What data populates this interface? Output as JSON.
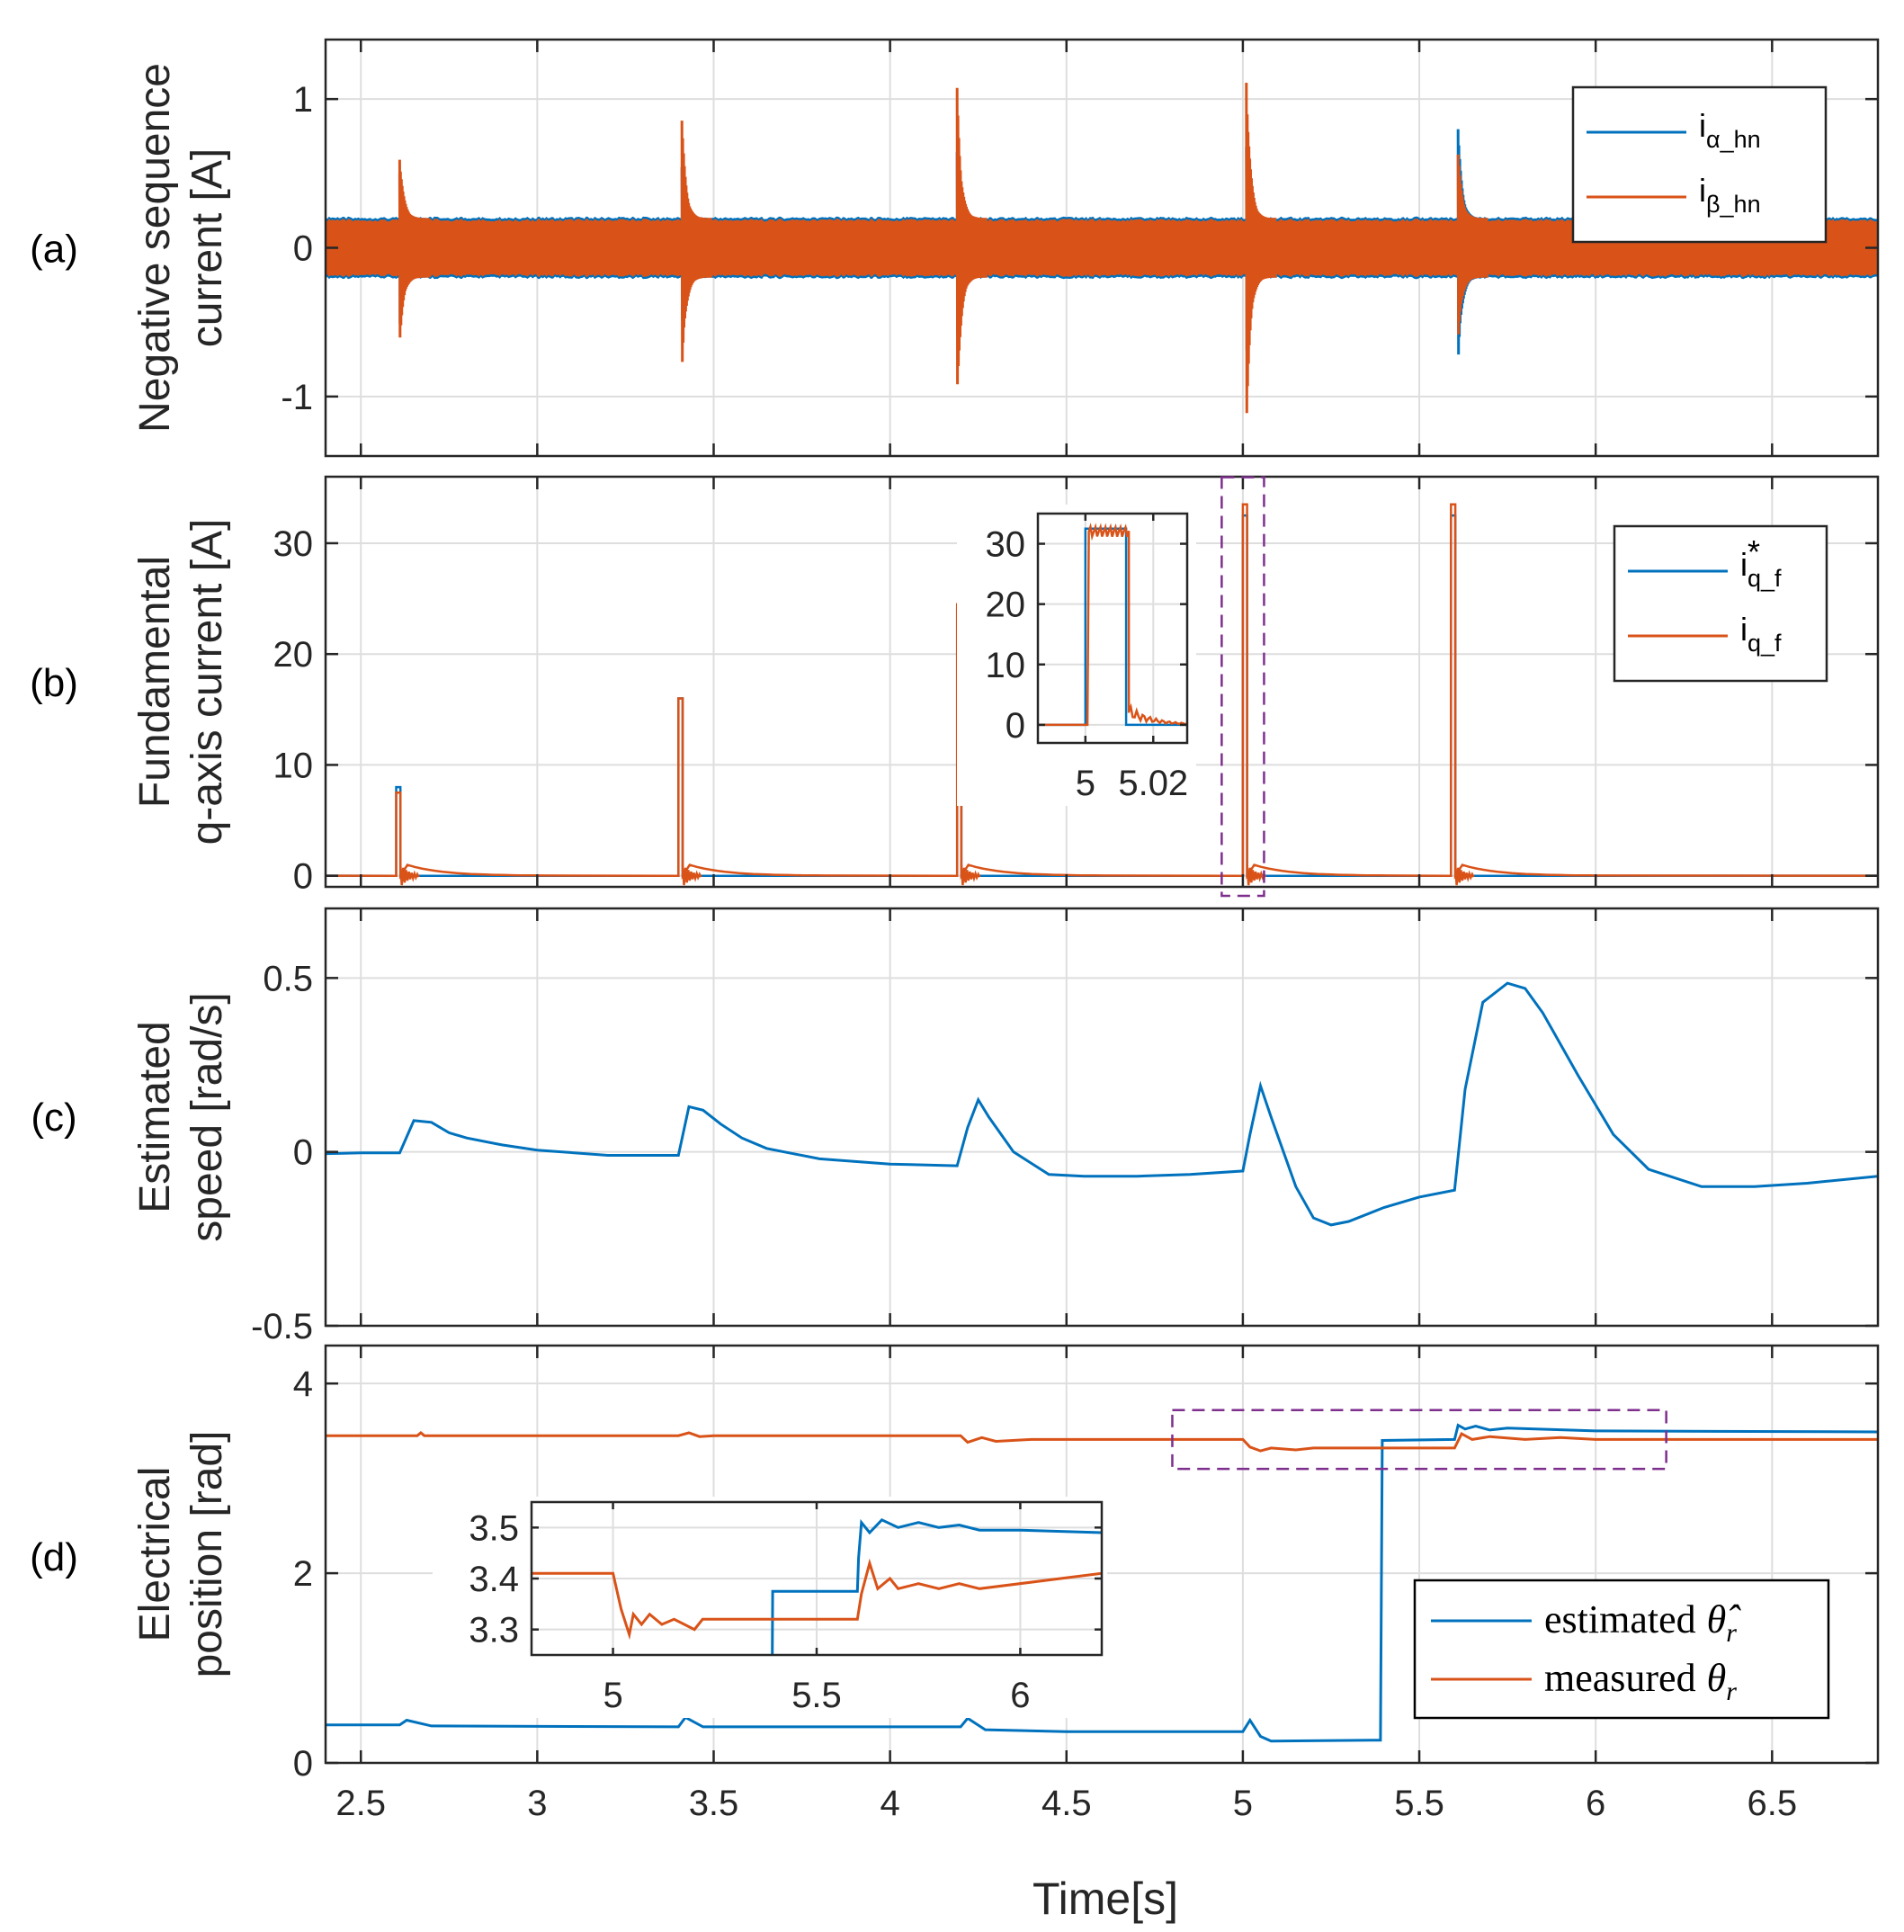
{
  "colors": {
    "blue": "#0072BD",
    "orange": "#D95319",
    "purple": "#7E2F8E",
    "grid": "#dedede",
    "axis": "#262626"
  },
  "chart_data": [
    {
      "id": "a",
      "type": "line",
      "panel_label": "(a)",
      "ylabel": [
        "Negative sequence",
        "current [A]"
      ],
      "xlim": [
        2.4,
        6.8
      ],
      "ylim": [
        -1.4,
        1.4
      ],
      "xticks": [
        2.5,
        3,
        3.5,
        4,
        4.5,
        5,
        5.5,
        6,
        6.5
      ],
      "yticks": [
        -1,
        0,
        1
      ],
      "ytick_labels": [
        "-1",
        "0",
        "1"
      ],
      "baseline_amplitude": 0.2,
      "series": [
        {
          "name": "i_alpha_hn",
          "legend_main": "i",
          "legend_sub": "α_hn",
          "color": "blue",
          "transients": [
            {
              "t": 2.61,
              "peak": 0.55
            },
            {
              "t": 3.41,
              "peak": 0.55
            },
            {
              "t": 4.19,
              "peak": 0.65
            },
            {
              "t": 5.01,
              "peak": 0.75
            },
            {
              "t": 5.61,
              "peak": 0.82
            }
          ]
        },
        {
          "name": "i_beta_hn",
          "legend_main": "i",
          "legend_sub": "β_hn",
          "color": "orange",
          "transients": [
            {
              "t": 2.61,
              "peak": 0.65
            },
            {
              "t": 3.41,
              "peak": 0.88
            },
            {
              "t": 4.19,
              "peak": 1.08
            },
            {
              "t": 5.01,
              "peak": 1.22
            },
            {
              "t": 5.61,
              "peak": 0.65
            }
          ]
        }
      ]
    },
    {
      "id": "b",
      "type": "line",
      "panel_label": "(b)",
      "ylabel": [
        "Fundamental",
        "q-axis current [A]"
      ],
      "xlim": [
        2.4,
        6.8
      ],
      "ylim": [
        -1,
        36
      ],
      "xticks": [
        2.5,
        3,
        3.5,
        4,
        4.5,
        5,
        5.5,
        6,
        6.5
      ],
      "yticks": [
        0,
        10,
        20,
        30
      ],
      "ytick_labels": [
        "0",
        "10",
        "20",
        "30"
      ],
      "series": [
        {
          "name": "iq_f_ref",
          "legend_main": "i",
          "legend_sub": "q_f",
          "legend_sup": "*",
          "color": "blue",
          "pulses": [
            {
              "t": 2.6,
              "height": 8
            },
            {
              "t": 3.4,
              "height": 16
            },
            {
              "t": 4.19,
              "height": 24
            },
            {
              "t": 5.0,
              "height": 32.5
            },
            {
              "t": 5.59,
              "height": 32.5
            }
          ]
        },
        {
          "name": "iq_f",
          "legend_main": "i",
          "legend_sub": "q_f",
          "color": "orange",
          "pulses": [
            {
              "t": 2.6,
              "height": 7.5
            },
            {
              "t": 3.4,
              "height": 16
            },
            {
              "t": 4.19,
              "height": 24.5
            },
            {
              "t": 5.0,
              "height": 33.5
            },
            {
              "t": 5.59,
              "height": 33.5
            }
          ]
        }
      ],
      "highlight_box": {
        "x": [
          4.94,
          5.06
        ],
        "y": [
          -1,
          34
        ]
      },
      "inset": {
        "xlim": [
          4.986,
          5.03
        ],
        "ylim": [
          -3,
          35
        ],
        "xticks": [
          5,
          5.02
        ],
        "xtick_labels": [
          "5",
          "5.02"
        ],
        "yticks": [
          0,
          10,
          20,
          30
        ],
        "ytick_labels": [
          "0",
          "10",
          "20",
          "30"
        ],
        "ref_pulse": {
          "start": 5.0,
          "end": 5.012,
          "height": 32.5
        },
        "meas_pulse": {
          "start": 5.0006,
          "end": 5.0128,
          "height": 32.8
        }
      }
    },
    {
      "id": "c",
      "type": "line",
      "panel_label": "(c)",
      "ylabel": [
        "Estimated",
        "speed [rad/s]"
      ],
      "xlim": [
        2.4,
        6.8
      ],
      "ylim": [
        -0.5,
        0.7
      ],
      "xticks": [
        2.5,
        3,
        3.5,
        4,
        4.5,
        5,
        5.5,
        6,
        6.5
      ],
      "yticks": [
        -0.5,
        0,
        0.5
      ],
      "ytick_labels": [
        "-0.5",
        "0",
        "0.5"
      ],
      "series": [
        {
          "name": "speed_est",
          "color": "blue",
          "x": [
            2.4,
            2.5,
            2.61,
            2.65,
            2.7,
            2.75,
            2.8,
            2.9,
            3.0,
            3.2,
            3.4,
            3.43,
            3.47,
            3.52,
            3.58,
            3.65,
            3.8,
            4.0,
            4.19,
            4.22,
            4.25,
            4.28,
            4.35,
            4.45,
            4.55,
            4.7,
            4.85,
            5.0,
            5.02,
            5.05,
            5.08,
            5.15,
            5.2,
            5.25,
            5.3,
            5.4,
            5.5,
            5.6,
            5.63,
            5.68,
            5.75,
            5.8,
            5.85,
            5.95,
            6.05,
            6.15,
            6.3,
            6.45,
            6.6,
            6.8
          ],
          "y": [
            -0.005,
            -0.003,
            -0.003,
            0.09,
            0.085,
            0.055,
            0.04,
            0.02,
            0.005,
            -0.01,
            -0.01,
            0.13,
            0.12,
            0.08,
            0.04,
            0.01,
            -0.02,
            -0.035,
            -0.04,
            0.07,
            0.15,
            0.1,
            0.0,
            -0.065,
            -0.07,
            -0.07,
            -0.065,
            -0.055,
            0.05,
            0.19,
            0.1,
            -0.1,
            -0.19,
            -0.21,
            -0.2,
            -0.16,
            -0.13,
            -0.11,
            0.18,
            0.43,
            0.485,
            0.47,
            0.4,
            0.22,
            0.05,
            -0.05,
            -0.1,
            -0.1,
            -0.09,
            -0.07
          ]
        }
      ]
    },
    {
      "id": "d",
      "type": "line",
      "panel_label": "(d)",
      "ylabel": [
        "Electrical",
        "position [rad]"
      ],
      "xlabel": "Time[s]",
      "xlim": [
        2.4,
        6.8
      ],
      "ylim": [
        0,
        4.4
      ],
      "xticks": [
        2.5,
        3,
        3.5,
        4,
        4.5,
        5,
        5.5,
        6,
        6.5
      ],
      "xtick_labels": [
        "2.5",
        "3",
        "3.5",
        "4",
        "4.5",
        "5",
        "5.5",
        "6",
        "6.5"
      ],
      "yticks": [
        0,
        2,
        4
      ],
      "ytick_labels": [
        "0",
        "2",
        "4"
      ],
      "series": [
        {
          "name": "theta_est",
          "legend_text": "estimated",
          "legend_symbol": "θ̂",
          "legend_sub": "r",
          "color": "blue",
          "x": [
            2.4,
            2.61,
            2.63,
            2.7,
            3.4,
            3.42,
            3.47,
            4.2,
            4.22,
            4.27,
            4.5,
            5.0,
            5.02,
            5.05,
            5.08,
            5.39,
            5.395,
            5.6,
            5.61,
            5.63,
            5.66,
            5.7,
            5.75,
            6.0,
            6.8
          ],
          "y": [
            0.4,
            0.4,
            0.45,
            0.39,
            0.38,
            0.48,
            0.38,
            0.38,
            0.47,
            0.35,
            0.33,
            0.33,
            0.45,
            0.28,
            0.23,
            0.24,
            3.4,
            3.41,
            3.56,
            3.52,
            3.55,
            3.51,
            3.53,
            3.5,
            3.49
          ]
        },
        {
          "name": "theta_meas",
          "legend_text": "measured",
          "legend_symbol": "θ",
          "legend_sub": "r",
          "color": "orange",
          "x": [
            2.4,
            2.66,
            2.67,
            2.68,
            3.4,
            3.43,
            3.46,
            3.5,
            4.2,
            4.22,
            4.26,
            4.3,
            4.4,
            4.6,
            4.8,
            5.0,
            5.02,
            5.05,
            5.08,
            5.15,
            5.2,
            5.6,
            5.62,
            5.65,
            5.7,
            5.8,
            5.9,
            6.0,
            6.8
          ],
          "y": [
            3.45,
            3.45,
            3.48,
            3.45,
            3.45,
            3.48,
            3.44,
            3.45,
            3.45,
            3.38,
            3.43,
            3.39,
            3.41,
            3.41,
            3.41,
            3.41,
            3.33,
            3.29,
            3.32,
            3.3,
            3.32,
            3.32,
            3.47,
            3.41,
            3.44,
            3.41,
            3.43,
            3.41,
            3.41
          ]
        }
      ],
      "highlight_box": {
        "x": [
          4.8,
          6.2
        ],
        "y": [
          3.1,
          3.72
        ]
      },
      "inset": {
        "xlim": [
          4.8,
          6.2
        ],
        "ylim": [
          3.25,
          3.55
        ],
        "xticks": [
          5,
          5.5,
          6
        ],
        "xtick_labels": [
          "5",
          "5.5",
          "6"
        ],
        "yticks": [
          3.3,
          3.4,
          3.5
        ],
        "ytick_labels": [
          "3.3",
          "3.4",
          "3.5"
        ],
        "est_x": [
          5.39,
          5.392,
          5.6,
          5.603,
          5.61,
          5.63,
          5.66,
          5.7,
          5.75,
          5.8,
          5.85,
          5.9,
          6.0,
          6.2
        ],
        "est_y": [
          3.1,
          3.375,
          3.375,
          3.44,
          3.51,
          3.49,
          3.515,
          3.5,
          3.51,
          3.5,
          3.505,
          3.495,
          3.495,
          3.49
        ],
        "meas_x": [
          4.8,
          5.0,
          5.02,
          5.04,
          5.05,
          5.07,
          5.09,
          5.12,
          5.15,
          5.2,
          5.22,
          5.6,
          5.61,
          5.63,
          5.65,
          5.68,
          5.7,
          5.75,
          5.8,
          5.85,
          5.9,
          6.2
        ],
        "meas_y": [
          3.41,
          3.41,
          3.34,
          3.29,
          3.33,
          3.31,
          3.33,
          3.31,
          3.32,
          3.3,
          3.32,
          3.32,
          3.37,
          3.43,
          3.38,
          3.4,
          3.38,
          3.39,
          3.38,
          3.39,
          3.38,
          3.41
        ]
      }
    }
  ]
}
